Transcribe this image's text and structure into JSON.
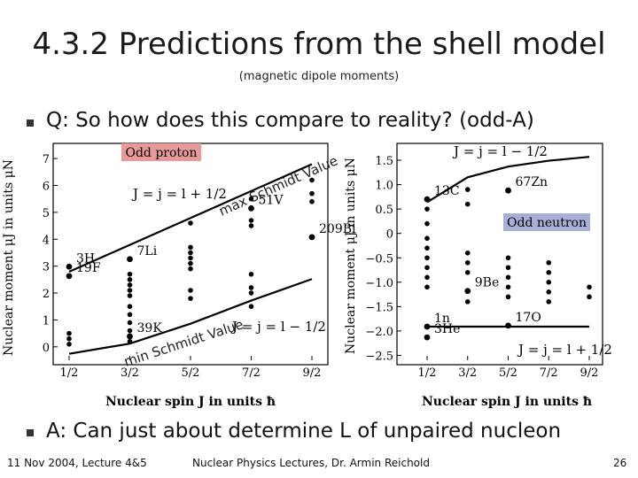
{
  "title": "4.3.2 Predictions from the shell model",
  "subtitle": "(magnetic dipole moments)",
  "question": "Q: So how does this compare to reality? (odd-A)",
  "answer": "A: Can just about determine L of unpaired nucleon",
  "footer": {
    "left": "11 Nov 2004, Lecture 4&5",
    "center": "Nuclear Physics Lectures, Dr. Armin Reichold",
    "right": "26"
  },
  "colors": {
    "proton_box": "#e89a9a",
    "neutron_box": "#a9aed6"
  },
  "annotations": {
    "max_schmidt": "max Schmidt Value",
    "min_schmidt": "min Schmidt Value"
  },
  "chart_data": [
    {
      "type": "scatter",
      "title": "Odd proton",
      "xlabel": "Nuclear spin J in units ħ",
      "ylabel": "Nuclear moment μJ in units μN",
      "x_ticks": [
        "1/2",
        "3/2",
        "5/2",
        "7/2",
        "9/2"
      ],
      "y_ticks": [
        "0",
        "1",
        "2",
        "3",
        "4",
        "5",
        "6",
        "7"
      ],
      "ylim": [
        -0.5,
        7.3
      ],
      "line_labels": [
        "J = j = l + 1/2",
        "J = j = l − 1/2"
      ],
      "upper_line": {
        "x": [
          0.5,
          4.5
        ],
        "y": [
          2.79,
          6.79
        ]
      },
      "lower_line": {
        "x": [
          0.5,
          1.5,
          2.5,
          3.5,
          4.5
        ],
        "y": [
          -0.26,
          0.12,
          0.86,
          1.72,
          2.52
        ]
      },
      "labeled_points": [
        {
          "label": "3H",
          "x": 0.5,
          "y": 2.98
        },
        {
          "label": "19F",
          "x": 0.5,
          "y": 2.63
        },
        {
          "label": "7Li",
          "x": 1.5,
          "y": 3.26
        },
        {
          "label": "39K",
          "x": 1.5,
          "y": 0.39
        },
        {
          "label": "51V",
          "x": 3.5,
          "y": 5.15
        },
        {
          "label": "209Bi",
          "x": 4.5,
          "y": 4.08
        }
      ],
      "points": [
        {
          "x": 0.5,
          "y": 0.1
        },
        {
          "x": 0.5,
          "y": 0.5
        },
        {
          "x": 0.5,
          "y": 0.3
        },
        {
          "x": 1.5,
          "y": 2.1
        },
        {
          "x": 1.5,
          "y": 2.3
        },
        {
          "x": 1.5,
          "y": 2.5
        },
        {
          "x": 1.5,
          "y": 2.7
        },
        {
          "x": 1.5,
          "y": 1.9
        },
        {
          "x": 1.5,
          "y": 1.5
        },
        {
          "x": 1.5,
          "y": 1.2
        },
        {
          "x": 1.5,
          "y": 0.9
        },
        {
          "x": 1.5,
          "y": 0.6
        },
        {
          "x": 1.5,
          "y": 0.2
        },
        {
          "x": 2.5,
          "y": 4.6
        },
        {
          "x": 2.5,
          "y": 3.7
        },
        {
          "x": 2.5,
          "y": 3.5
        },
        {
          "x": 2.5,
          "y": 3.3
        },
        {
          "x": 2.5,
          "y": 3.1
        },
        {
          "x": 2.5,
          "y": 2.9
        },
        {
          "x": 2.5,
          "y": 2.1
        },
        {
          "x": 2.5,
          "y": 1.8
        },
        {
          "x": 3.5,
          "y": 5.5
        },
        {
          "x": 3.5,
          "y": 4.7
        },
        {
          "x": 3.5,
          "y": 4.5
        },
        {
          "x": 3.5,
          "y": 2.7
        },
        {
          "x": 3.5,
          "y": 2.2
        },
        {
          "x": 3.5,
          "y": 2.0
        },
        {
          "x": 3.5,
          "y": 1.5
        },
        {
          "x": 4.5,
          "y": 6.2
        },
        {
          "x": 4.5,
          "y": 5.7
        },
        {
          "x": 4.5,
          "y": 5.4
        }
      ]
    },
    {
      "type": "scatter",
      "title": "Odd neutron",
      "xlabel": "Nuclear spin J in units ħ",
      "ylabel": "Nuclear moment μJ in units μN",
      "x_ticks": [
        "1/2",
        "3/2",
        "5/2",
        "7/2",
        "9/2"
      ],
      "y_ticks": [
        "1.5",
        "1.0",
        "0.5",
        "0",
        "−0.5",
        "−1.0",
        "−1.5",
        "−2.0",
        "−2.5"
      ],
      "ylim": [
        -2.6,
        1.7
      ],
      "line_labels": [
        "J = j = l − 1/2",
        "J = j = l + 1/2"
      ],
      "upper_line": {
        "x": [
          0.5,
          1.5,
          2.5,
          3.5,
          4.5
        ],
        "y": [
          0.64,
          1.15,
          1.37,
          1.49,
          1.57
        ]
      },
      "lower_line": {
        "x": [
          0.5,
          4.5
        ],
        "y": [
          -1.91,
          -1.91
        ]
      },
      "labeled_points": [
        {
          "label": "13C",
          "x": 0.5,
          "y": 0.7
        },
        {
          "label": "67Zn",
          "x": 2.5,
          "y": 0.88
        },
        {
          "label": "9Be",
          "x": 1.5,
          "y": -1.18
        },
        {
          "label": "1n",
          "x": 0.5,
          "y": -1.91
        },
        {
          "label": "17O",
          "x": 2.5,
          "y": -1.89
        },
        {
          "label": "3He",
          "x": 0.5,
          "y": -2.13
        }
      ],
      "points": [
        {
          "x": 0.5,
          "y": 0.5
        },
        {
          "x": 0.5,
          "y": 0.2
        },
        {
          "x": 0.5,
          "y": -0.1
        },
        {
          "x": 0.5,
          "y": -0.3
        },
        {
          "x": 0.5,
          "y": -0.5
        },
        {
          "x": 0.5,
          "y": -0.7
        },
        {
          "x": 0.5,
          "y": -0.9
        },
        {
          "x": 0.5,
          "y": -1.1
        },
        {
          "x": 1.5,
          "y": 0.9
        },
        {
          "x": 1.5,
          "y": 0.6
        },
        {
          "x": 1.5,
          "y": -0.4
        },
        {
          "x": 1.5,
          "y": -0.6
        },
        {
          "x": 1.5,
          "y": -0.8
        },
        {
          "x": 1.5,
          "y": -1.4
        },
        {
          "x": 2.5,
          "y": -0.5
        },
        {
          "x": 2.5,
          "y": -0.7
        },
        {
          "x": 2.5,
          "y": -0.9
        },
        {
          "x": 2.5,
          "y": -1.1
        },
        {
          "x": 2.5,
          "y": -1.3
        },
        {
          "x": 3.5,
          "y": -0.6
        },
        {
          "x": 3.5,
          "y": -0.8
        },
        {
          "x": 3.5,
          "y": -1.0
        },
        {
          "x": 3.5,
          "y": -1.2
        },
        {
          "x": 3.5,
          "y": -1.4
        },
        {
          "x": 4.5,
          "y": -1.1
        },
        {
          "x": 4.5,
          "y": -1.3
        }
      ]
    }
  ]
}
